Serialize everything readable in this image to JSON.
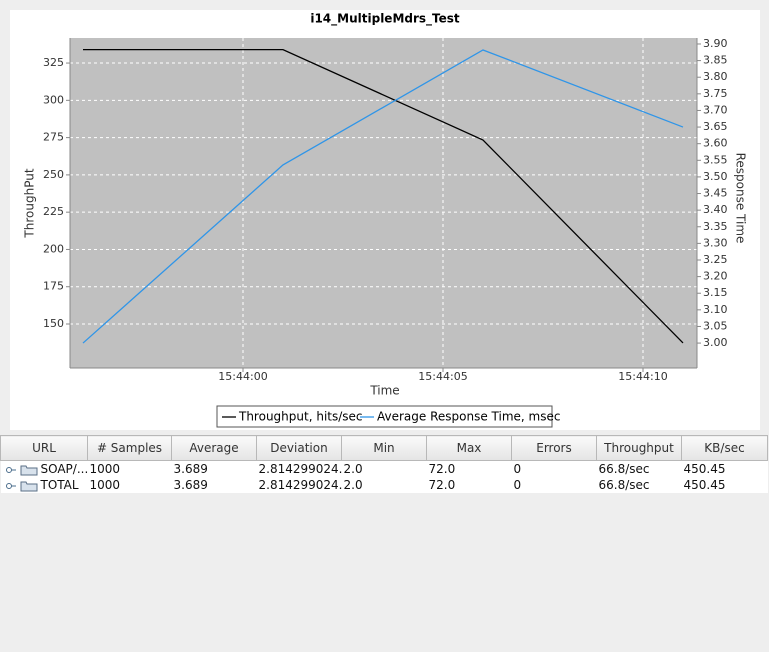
{
  "chart_data": {
    "type": "line",
    "title": "i14_MultipleMdrs_Test",
    "x_label": "Time",
    "y_label": "ThroughPut",
    "y2_label": "Response Time",
    "x": [
      "15:43:56",
      "15:44:01",
      "15:44:06",
      "15:44:11"
    ],
    "xlim": [
      "15:43:55.675",
      "15:44:11.35"
    ],
    "xticks": [
      "15:44:00",
      "15:44:05",
      "15:44:10"
    ],
    "ylim": [
      120.5,
      341.8
    ],
    "yticks": [
      150,
      175,
      200,
      225,
      250,
      275,
      300,
      325
    ],
    "y2lim": [
      2.925,
      3.918
    ],
    "y2ticks": [
      {
        "value": 3,
        "label": "3.00"
      },
      {
        "value": 3.05,
        "label": "3.05"
      },
      {
        "value": 3.1,
        "label": "3.10"
      },
      {
        "value": 3.15,
        "label": "3.15"
      },
      {
        "value": 3.2,
        "label": "3.20"
      },
      {
        "value": 3.25,
        "label": "3.25"
      },
      {
        "value": 3.3,
        "label": "3.30"
      },
      {
        "value": 3.35,
        "label": "3.35"
      },
      {
        "value": 3.4,
        "label": "3.40"
      },
      {
        "value": 3.45,
        "label": "3.45"
      },
      {
        "value": 3.5,
        "label": "3.50"
      },
      {
        "value": 3.55,
        "label": "3.55"
      },
      {
        "value": 3.6,
        "label": "3.60"
      },
      {
        "value": 3.65,
        "label": "3.65"
      },
      {
        "value": 3.7,
        "label": "3.70"
      },
      {
        "value": 3.75,
        "label": "3.75"
      },
      {
        "value": 3.8,
        "label": "3.80"
      },
      {
        "value": 3.85,
        "label": "3.85"
      },
      {
        "value": 3.9,
        "label": "3.90"
      }
    ],
    "grid": true,
    "series": [
      {
        "name": "Throughput, hits/sec",
        "color": "#000000",
        "values": [
          334,
          334,
          273.4,
          137.3
        ]
      },
      {
        "name": "Average Response Time, msec",
        "color": "#2f95e8",
        "axis": "y2",
        "values": [
          3.0,
          3.536,
          3.882,
          3.65
        ]
      }
    ]
  },
  "table": {
    "columns": [
      "URL",
      "# Samples",
      "Average",
      "Deviation",
      "Min",
      "Max",
      "Errors",
      "Throughput",
      "KB/sec"
    ],
    "rows": [
      [
        "SOAP/...",
        "1000",
        "3.689",
        "2.814299024...",
        "2.0",
        "72.0",
        "0",
        "66.8/sec",
        "450.45"
      ],
      [
        "TOTAL",
        "1000",
        "3.689",
        "2.814299024...",
        "2.0",
        "72.0",
        "0",
        "66.8/sec",
        "450.45"
      ]
    ]
  }
}
